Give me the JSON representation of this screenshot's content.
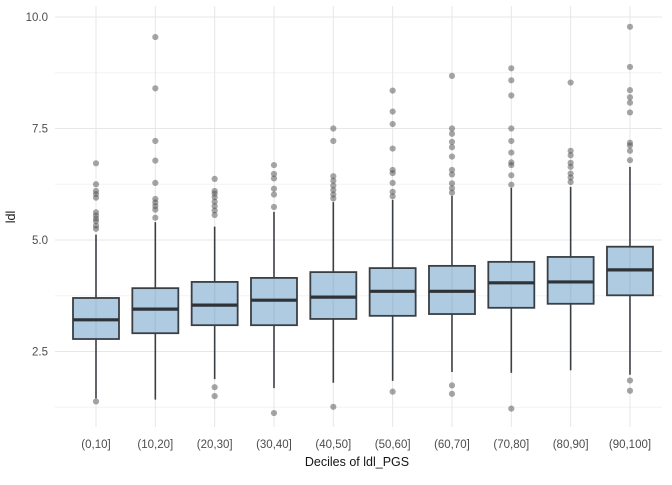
{
  "figure": {
    "type_hint": "R ggplot-style boxplot figure"
  },
  "chart_data": {
    "type": "boxplot",
    "title": "",
    "xlabel": "Deciles of ldl_PGS",
    "ylabel": "ldl",
    "categories": [
      "(0,10]",
      "(10,20]",
      "(20,30]",
      "(30,40]",
      "(40,50]",
      "(50,60]",
      "(60,70]",
      "(70,80]",
      "(80,90]",
      "(90,100]"
    ],
    "ylim": [
      0.8,
      10.3
    ],
    "grid": true,
    "legend": "none",
    "y_ticks_major": [
      {
        "value": 10.0,
        "label": "10.0"
      },
      {
        "value": 7.5,
        "label": "7.5"
      },
      {
        "value": 5.0,
        "label": "5.0"
      },
      {
        "value": 2.5,
        "label": "2.5"
      }
    ],
    "y_ticks_minor": [
      1.25,
      3.75,
      6.25,
      8.75
    ],
    "boxes": [
      {
        "category": "(0,10]",
        "q1": 2.78,
        "median": 3.21,
        "q3": 3.7,
        "whisker_low": 1.45,
        "whisker_high": 5.12,
        "outliers_high": [
          6.72,
          6.25,
          6.1,
          6.03,
          5.95,
          5.62,
          5.55,
          5.48,
          5.42,
          5.32,
          5.25
        ],
        "outliers_low": [
          1.38
        ]
      },
      {
        "category": "(10,20]",
        "q1": 2.91,
        "median": 3.45,
        "q3": 3.92,
        "whisker_low": 1.42,
        "whisker_high": 5.4,
        "outliers_high": [
          9.55,
          8.4,
          7.22,
          6.78,
          6.28,
          5.92,
          5.84,
          5.76,
          5.68,
          5.5
        ],
        "outliers_low": []
      },
      {
        "category": "(20,30]",
        "q1": 3.09,
        "median": 3.54,
        "q3": 4.06,
        "whisker_low": 1.88,
        "whisker_high": 5.3,
        "outliers_high": [
          6.37,
          6.1,
          6.04,
          5.96,
          5.86,
          5.76,
          5.66,
          5.56
        ],
        "outliers_low": [
          1.7,
          1.5
        ]
      },
      {
        "category": "(30,40]",
        "q1": 3.09,
        "median": 3.65,
        "q3": 4.15,
        "whisker_low": 1.68,
        "whisker_high": 5.63,
        "outliers_high": [
          6.68,
          6.48,
          6.38,
          6.15,
          6.02,
          5.74
        ],
        "outliers_low": [
          1.12
        ]
      },
      {
        "category": "(40,50]",
        "q1": 3.23,
        "median": 3.72,
        "q3": 4.28,
        "whisker_low": 1.8,
        "whisker_high": 5.85,
        "outliers_high": [
          7.5,
          7.22,
          6.43,
          6.33,
          6.22,
          6.12,
          6.02,
          5.93
        ],
        "outliers_low": [
          1.26
        ]
      },
      {
        "category": "(50,60]",
        "q1": 3.3,
        "median": 3.85,
        "q3": 4.37,
        "whisker_low": 1.84,
        "whisker_high": 5.9,
        "outliers_high": [
          8.35,
          7.88,
          7.6,
          7.05,
          6.57,
          6.5,
          6.28,
          6.08,
          5.98
        ],
        "outliers_low": [
          1.6
        ]
      },
      {
        "category": "(60,70]",
        "q1": 3.34,
        "median": 3.85,
        "q3": 4.42,
        "whisker_low": 2.04,
        "whisker_high": 5.99,
        "outliers_high": [
          8.68,
          7.5,
          7.38,
          7.2,
          7.08,
          6.87,
          6.57,
          6.47,
          6.27,
          6.16,
          6.06
        ],
        "outliers_low": [
          1.74,
          1.55
        ]
      },
      {
        "category": "(70,80]",
        "q1": 3.48,
        "median": 4.04,
        "q3": 4.51,
        "whisker_low": 2.02,
        "whisker_high": 6.17,
        "outliers_high": [
          8.85,
          8.58,
          8.24,
          7.5,
          7.22,
          6.96,
          6.74,
          6.68,
          6.45,
          6.24
        ],
        "outliers_low": [
          1.22
        ]
      },
      {
        "category": "(80,90]",
        "q1": 3.57,
        "median": 4.06,
        "q3": 4.62,
        "whisker_low": 2.08,
        "whisker_high": 6.19,
        "outliers_high": [
          8.53,
          7.0,
          6.9,
          6.73,
          6.64,
          6.49,
          6.4,
          6.3
        ],
        "outliers_low": []
      },
      {
        "category": "(90,100]",
        "q1": 3.76,
        "median": 4.33,
        "q3": 4.85,
        "whisker_low": 1.98,
        "whisker_high": 6.64,
        "outliers_high": [
          9.78,
          8.88,
          8.36,
          8.2,
          8.08,
          7.86,
          7.18,
          7.12,
          7.0,
          6.79
        ],
        "outliers_low": [
          1.85,
          1.62
        ]
      }
    ],
    "colors": {
      "background": "#ffffff",
      "box_fill": "#abc8df",
      "box_border": "#3a3f44",
      "median": "#2e3338",
      "whisker": "#3a3f44",
      "outlier": "#4d4d4d",
      "grid_major": "#e7e7e7",
      "grid_minor": "#f3f3f3",
      "axis_text": "#4d4d4d",
      "axis_title": "#141414"
    }
  }
}
